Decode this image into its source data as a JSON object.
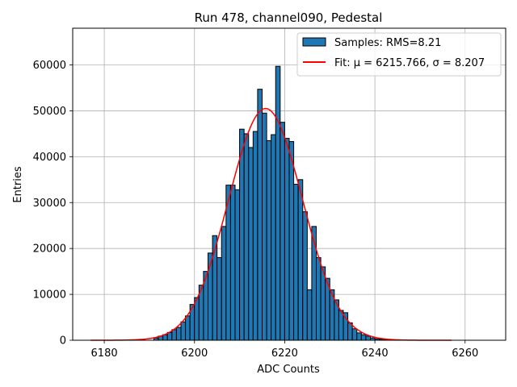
{
  "chart_data": {
    "type": "bar",
    "title": "Run 478, channel090, Pedestal",
    "xlabel": "ADC Counts",
    "ylabel": "Entries",
    "xlim": [
      6173,
      6269
    ],
    "ylim": [
      0,
      68000
    ],
    "xticks": [
      6180,
      6200,
      6220,
      6240,
      6260
    ],
    "yticks": [
      0,
      10000,
      20000,
      30000,
      40000,
      50000,
      60000
    ],
    "grid": true,
    "legend_position": "top-right",
    "bin_width": 1,
    "colors": {
      "bars": "#1f77b4",
      "fit": "#ff0000",
      "edge": "#000000"
    },
    "series": [
      {
        "name": "Samples: RMS=8.21",
        "kind": "histogram",
        "bin_left_edges": [
          6191,
          6192,
          6193,
          6194,
          6195,
          6196,
          6197,
          6198,
          6199,
          6200,
          6201,
          6202,
          6203,
          6204,
          6205,
          6206,
          6207,
          6208,
          6209,
          6210,
          6211,
          6212,
          6213,
          6214,
          6215,
          6216,
          6217,
          6218,
          6219,
          6220,
          6221,
          6222,
          6223,
          6224,
          6225,
          6226,
          6227,
          6228,
          6229,
          6230,
          6231,
          6232,
          6233,
          6234,
          6235,
          6236,
          6237,
          6238,
          6239,
          6240,
          6241,
          6242
        ],
        "values": [
          500,
          900,
          1200,
          1700,
          2300,
          2800,
          4000,
          5300,
          7800,
          9300,
          12000,
          15000,
          19000,
          22800,
          18000,
          24800,
          33800,
          33800,
          32800,
          46000,
          45000,
          42000,
          45500,
          54700,
          49500,
          43500,
          44800,
          59700,
          47500,
          44000,
          43300,
          34000,
          35000,
          28000,
          11000,
          24800,
          18000,
          16000,
          13500,
          11000,
          8800,
          6500,
          6000,
          3800,
          2500,
          1600,
          1200,
          900,
          500,
          300,
          200,
          100
        ]
      },
      {
        "name": "Fit: μ = 6215.766, σ = 8.207",
        "kind": "gaussian_fit",
        "mu": 6215.766,
        "sigma": 8.207,
        "amplitude": 50500,
        "x_range": [
          6177,
          6257
        ]
      }
    ]
  }
}
